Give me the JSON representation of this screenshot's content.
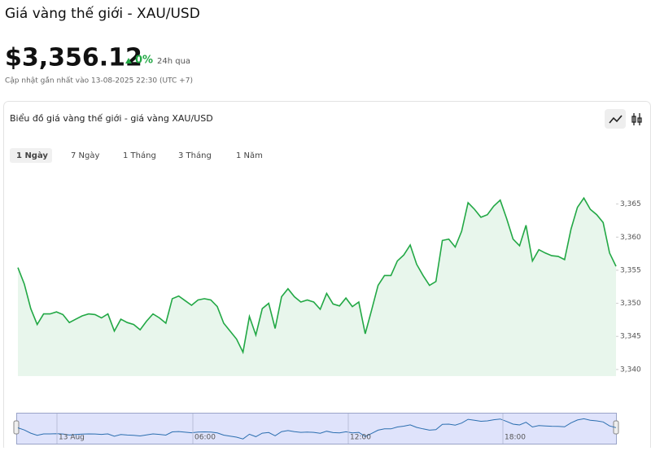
{
  "header": {
    "title": "Giá vàng thế giới - XAU/USD",
    "price": "$3,356.12",
    "change": "0%",
    "period": "24h qua",
    "updated": "Cập nhật gần nhất vào 13-08-2025 22:30 (UTC +7)"
  },
  "tabs": [
    "1 Ngày",
    "7 Ngày",
    "1 Tháng",
    "3 Tháng",
    "1 Năm"
  ],
  "navigator": {
    "labels": [
      "13 Aug",
      "06:00",
      "12:00",
      "18:00"
    ]
  },
  "chart_data": {
    "type": "area",
    "title": "Biểu đồ giá vàng thế giới - giá vàng XAU/USD",
    "color": "#22a845",
    "values": [
      3355.4,
      3352.9,
      3349.2,
      3346.8,
      3348.4,
      3348.4,
      3348.7,
      3348.3,
      3347.1,
      3347.6,
      3348.1,
      3348.4,
      3348.3,
      3347.8,
      3348.4,
      3345.8,
      3347.6,
      3347.1,
      3346.8,
      3346.0,
      3347.3,
      3348.4,
      3347.8,
      3347.0,
      3350.7,
      3351.1,
      3350.4,
      3349.7,
      3350.5,
      3350.7,
      3350.5,
      3349.5,
      3347.0,
      3345.8,
      3344.6,
      3342.6,
      3348.0,
      3345.2,
      3349.2,
      3350.0,
      3346.2,
      3351.0,
      3352.2,
      3351.0,
      3350.2,
      3350.5,
      3350.2,
      3349.1,
      3351.5,
      3349.9,
      3349.6,
      3350.8,
      3349.5,
      3350.2,
      3345.4,
      3349.0,
      3352.7,
      3354.2,
      3354.2,
      3356.4,
      3357.3,
      3358.8,
      3355.9,
      3354.2,
      3352.7,
      3353.3,
      3359.5,
      3359.7,
      3358.5,
      3360.9,
      3365.2,
      3364.2,
      3363.0,
      3363.4,
      3364.7,
      3365.6,
      3362.8,
      3359.7,
      3358.7,
      3361.8,
      3356.4,
      3358.1,
      3357.6,
      3357.2,
      3357.1,
      3356.6,
      3361.2,
      3364.5,
      3365.9,
      3364.2,
      3363.4,
      3362.2,
      3357.6,
      3355.6
    ],
    "ylim": [
      3339,
      3370
    ],
    "yticks": [
      {
        "value": 3340,
        "label": "3,340"
      },
      {
        "value": 3345,
        "label": "3,345"
      },
      {
        "value": 3350,
        "label": "3,350"
      },
      {
        "value": 3355,
        "label": "3,355"
      },
      {
        "value": 3360,
        "label": "3,360"
      },
      {
        "value": 3365,
        "label": "3,365"
      }
    ]
  }
}
